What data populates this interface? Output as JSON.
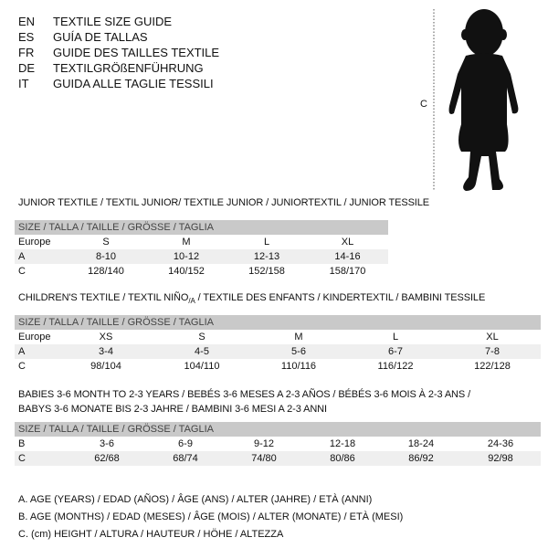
{
  "header": {
    "languages": [
      {
        "code": "EN",
        "title": "TEXTILE SIZE GUIDE"
      },
      {
        "code": "ES",
        "title": "GUÍA DE TALLAS"
      },
      {
        "code": "FR",
        "title": "GUIDE DES TAILLES TEXTILE"
      },
      {
        "code": "DE",
        "title": "TEXTILGRÖßENFÜHRUNG"
      },
      {
        "code": "IT",
        "title": "GUIDA ALLE TAGLIE TESSILI"
      }
    ]
  },
  "figure": {
    "height_label": "C",
    "icon": "baby-silhouette"
  },
  "size_header": "SIZE / TALLA / TAILLE / GRÖSSE / TAGLIA",
  "junior": {
    "title": "JUNIOR TEXTILE / TEXTIL JUNIOR/ TEXTILE JUNIOR / JUNIORTEXTIL / JUNIOR TESSILE",
    "rows": [
      {
        "label": "Europe",
        "values": [
          "S",
          "M",
          "L",
          "XL"
        ]
      },
      {
        "label": "A",
        "values": [
          "8-10",
          "10-12",
          "12-13",
          "14-16"
        ]
      },
      {
        "label": "C",
        "values": [
          "128/140",
          "140/152",
          "152/158",
          "158/170"
        ]
      }
    ]
  },
  "children": {
    "title_pre": "CHILDREN'S TEXTILE / TEXTIL NIÑO",
    "title_sub": "/A",
    "title_post": " / TEXTILE DES ENFANTS / KINDERTEXTIL / BAMBINI TESSILE",
    "rows": [
      {
        "label": "Europe",
        "values": [
          "XS",
          "S",
          "M",
          "L",
          "XL"
        ]
      },
      {
        "label": "A",
        "values": [
          "3-4",
          "4-5",
          "5-6",
          "6-7",
          "7-8"
        ]
      },
      {
        "label": "C",
        "values": [
          "98/104",
          "104/110",
          "110/116",
          "116/122",
          "122/128"
        ]
      }
    ]
  },
  "babies": {
    "title_line1": "BABIES 3-6 MONTH TO 2-3 YEARS / BEBÉS 3-6 MESES A 2-3 AÑOS / BÉBÉS 3-6 MOIS À 2-3 ANS /",
    "title_line2": "BABYS 3-6 MONATE BIS 2-3 JAHRE / BAMBINI 3-6 MESI A 2-3 ANNI",
    "rows": [
      {
        "label": "B",
        "values": [
          "3-6",
          "6-9",
          "9-12",
          "12-18",
          "18-24",
          "24-36"
        ]
      },
      {
        "label": "C",
        "values": [
          "62/68",
          "68/74",
          "74/80",
          "80/86",
          "86/92",
          "92/98"
        ]
      }
    ]
  },
  "legend": [
    "A. AGE (YEARS) / EDAD (AÑOS) / ÂGE (ANS) / ALTER (JAHRE) / ETÀ (ANNI)",
    "B. AGE (MONTHS) / EDAD (MESES) / ÂGE (MOIS) / ALTER (MONATE) / ETÀ (MESI)",
    "C. (cm) HEIGHT / ALTURA / HAUTEUR / HÖHE / ALTEZZA"
  ]
}
